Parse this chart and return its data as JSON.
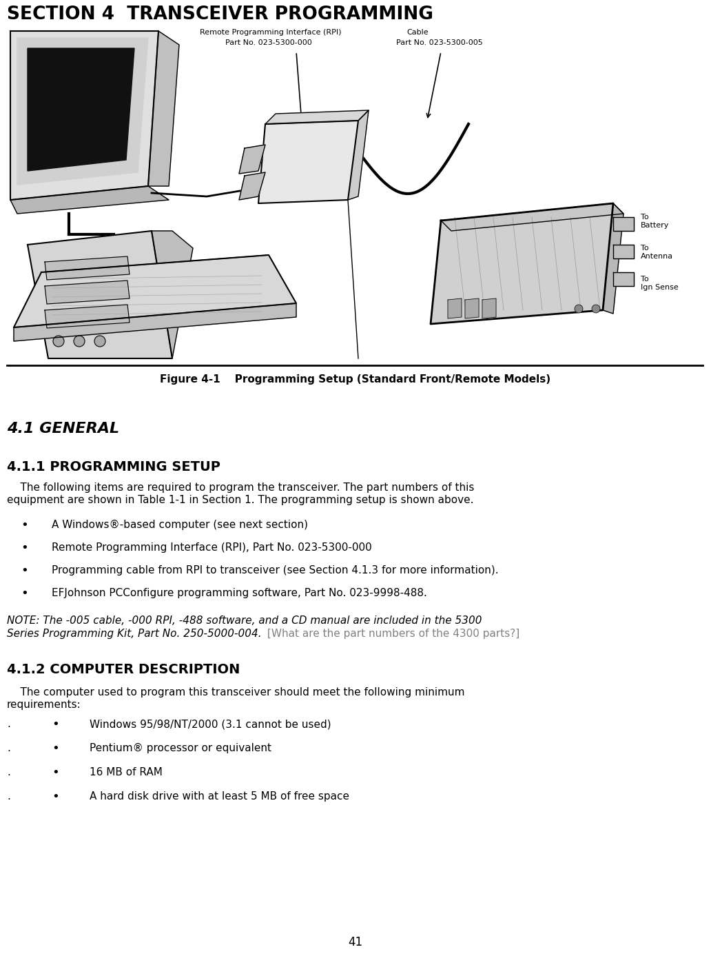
{
  "bg_color": "#ffffff",
  "page_number": "41",
  "section_title": "SECTION 4  TRANSCEIVER PROGRAMMING",
  "figure_caption": "Figure 4-1    Programming Setup (Standard Front/Remote Models)",
  "section_41_heading": "4.1 GENERAL",
  "section_411_heading": "4.1.1 PROGRAMMING SETUP",
  "section_411_para1": "    The following items are required to program the transceiver. The part numbers of this",
  "section_411_para2": "equipment are shown in Table 1-1 in Section 1. The programming setup is shown above.",
  "bullet_items_411": [
    "A Windows®-based computer (see next section)",
    "Remote Programming Interface (RPI), Part No. 023-5300-000",
    "Programming cable from RPI to transceiver (see Section 4.1.3 for more information).",
    "EFJohnson PCConfigure programming software, Part No. 023-9998-488."
  ],
  "note_line1_italic": "NOTE: The -005 cable, -000 RPI, -488 software, and a CD manual are included in the 5300",
  "note_line2_italic": "Series Programming Kit, Part No. 250-5000-004.",
  "note_line2_gray": " [What are the part numbers of the 4300 parts?]",
  "section_412_heading": "4.1.2 COMPUTER DESCRIPTION",
  "section_412_para1": "    The computer used to program this transceiver should meet the following minimum",
  "section_412_para2": "requirements:",
  "bullet_items_412": [
    "Windows 95/98/NT/2000 (3.1 cannot be used)",
    "Pentium® processor or equivalent",
    "16 MB of RAM",
    "A hard disk drive with at least 5 MB of free space"
  ],
  "drawing_rpi_label1": "Remote Programming Interface (RPI)",
  "drawing_rpi_label2": "Part No. 023-5300-000",
  "drawing_cable_label1": "Cable",
  "drawing_cable_label2": "Part No. 023-5300-005",
  "drawing_to_battery": "To\nBattery",
  "drawing_to_antenna": "To\nAntenna",
  "drawing_to_ign": "To\nIgn Sense",
  "title_fontsize": 19,
  "heading_41_fontsize": 16,
  "heading_411_fontsize": 14,
  "body_fontsize": 11,
  "note_fontsize": 11,
  "caption_fontsize": 11
}
